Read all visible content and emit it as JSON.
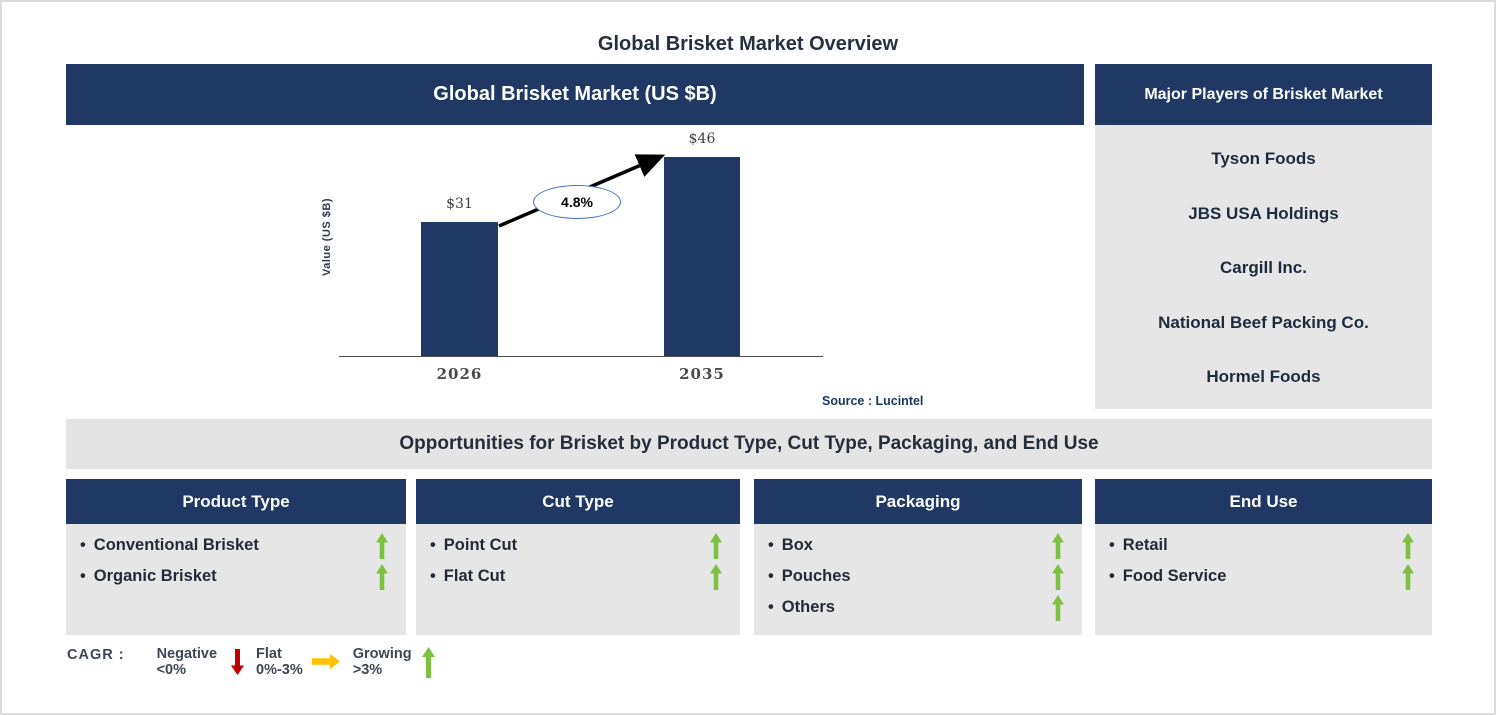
{
  "page_title": "Global Brisket Market Overview",
  "bullet": "•",
  "chart_panel": {
    "title": "Global Brisket Market (US $B)",
    "source_note": "Source : Lucintel"
  },
  "chart_data": {
    "type": "bar",
    "title": "Global Brisket Market (US $B)",
    "ylabel": "Value (US $B)",
    "xlabel": "",
    "categories": [
      "2026",
      "2035"
    ],
    "values": [
      31,
      46
    ],
    "value_labels": [
      "$31",
      "$46"
    ],
    "cagr_label": "4.8%",
    "ylim": [
      0,
      50
    ],
    "grid": false,
    "legend_position": "none",
    "annotation": "Black growth arrow from top of 2026 bar to top of 2035 bar with 4.8% CAGR ellipse"
  },
  "players_panel": {
    "title": "Major Players of Brisket Market",
    "companies": [
      "Tyson Foods",
      "JBS USA Holdings",
      "Cargill Inc.",
      "National Beef Packing Co.",
      "Hormel Foods"
    ]
  },
  "opportunities": {
    "banner": "Opportunities for Brisket by Product Type, Cut Type, Packaging, and End Use",
    "columns": [
      {
        "header": "Product Type",
        "items": [
          {
            "label": "Conventional Brisket",
            "trend": "growing"
          },
          {
            "label": "Organic Brisket",
            "trend": "growing"
          }
        ]
      },
      {
        "header": "Cut Type",
        "items": [
          {
            "label": "Point Cut",
            "trend": "growing"
          },
          {
            "label": "Flat Cut",
            "trend": "growing"
          }
        ]
      },
      {
        "header": "Packaging",
        "items": [
          {
            "label": "Box",
            "trend": "growing"
          },
          {
            "label": "Pouches",
            "trend": "growing"
          },
          {
            "label": "Others",
            "trend": "growing"
          }
        ]
      },
      {
        "header": "End Use",
        "items": [
          {
            "label": "Retail",
            "trend": "growing"
          },
          {
            "label": "Food Service",
            "trend": "growing"
          }
        ]
      }
    ]
  },
  "cagr_legend": {
    "label": "CAGR :",
    "entries": [
      {
        "name": "Negative",
        "range": "<0%",
        "arrow": "down-arrow",
        "color": "#C00000"
      },
      {
        "name": "Flat",
        "range": "0%-3%",
        "arrow": "right-arrow",
        "color": "#FFC000"
      },
      {
        "name": "Growing",
        "range": ">3%",
        "arrow": "up-arrow",
        "color": "#7DC142"
      }
    ]
  },
  "colors": {
    "navy_header": "#1F3864",
    "bar_navy": "#1F3864",
    "panel_gray": "#E7E6E6",
    "growing_green": "#7DC142",
    "flat_orange": "#FFC000",
    "negative_red": "#C00000",
    "source_blue": "#17375E",
    "ellipse_border_blue": "#4472C4"
  }
}
